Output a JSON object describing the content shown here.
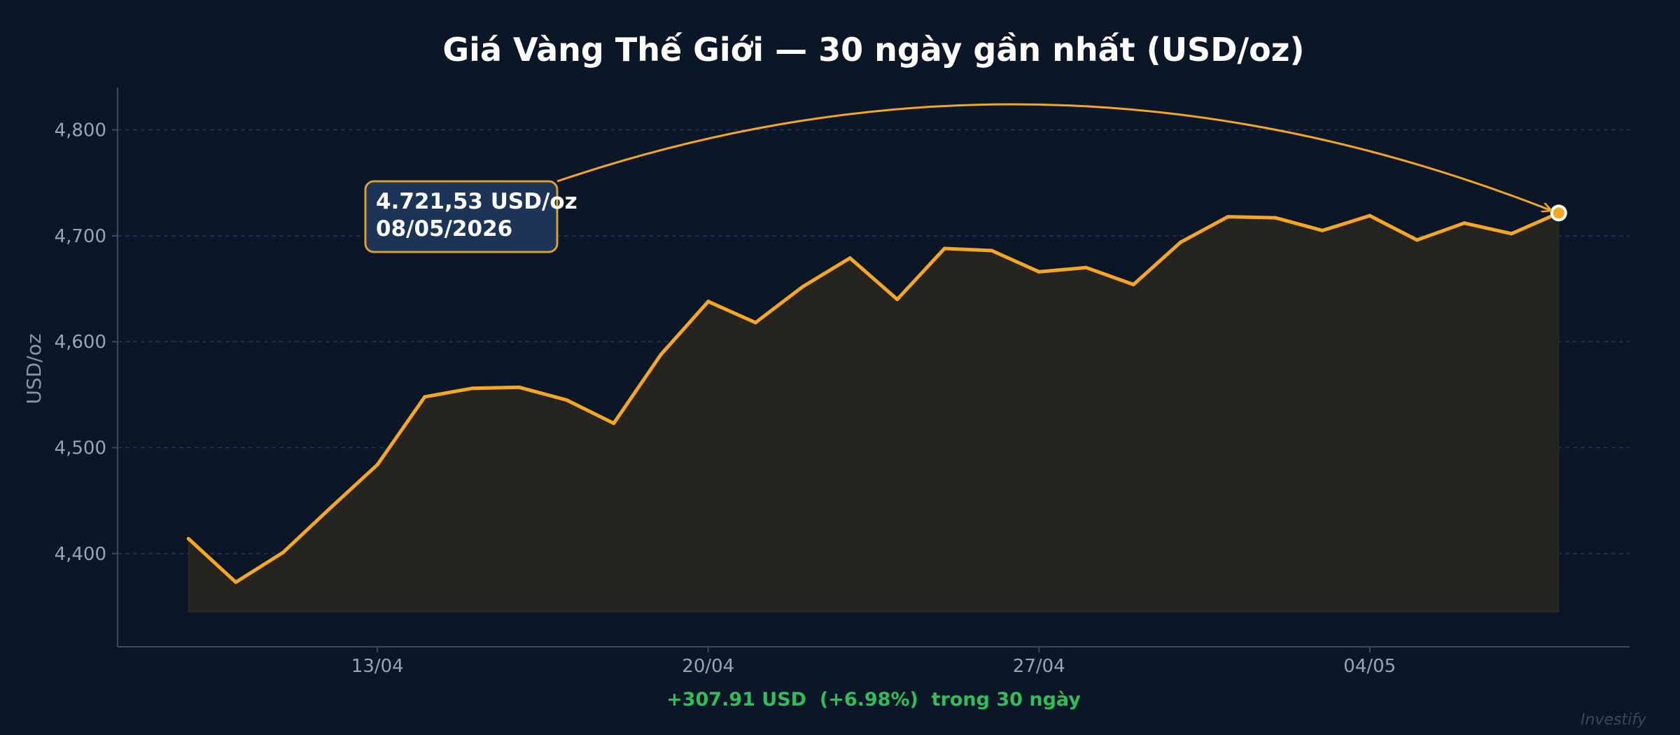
{
  "chart_data": {
    "type": "area",
    "title": "Giá Vàng Thế Giới — 30 ngày gần nhất (USD/oz)",
    "xlabel": "",
    "ylabel": "USD/oz",
    "ylim": [
      4312,
      4840
    ],
    "xlim": [
      "2026-04-07T12:00",
      "2026-05-09T12:00"
    ],
    "yticks": [
      4400,
      4500,
      4600,
      4700,
      4800
    ],
    "ytick_labels": [
      "4,400",
      "4,500",
      "4,600",
      "4,700",
      "4,800"
    ],
    "xticks": [
      "2026-04-13",
      "2026-04-20",
      "2026-04-27",
      "2026-05-04"
    ],
    "xtick_labels": [
      "13/04",
      "20/04",
      "27/04",
      "04/05"
    ],
    "grid": true,
    "x": [
      "2026-04-09",
      "2026-04-10",
      "2026-04-11",
      "2026-04-12",
      "2026-04-13",
      "2026-04-14",
      "2026-04-15",
      "2026-04-16",
      "2026-04-17",
      "2026-04-18",
      "2026-04-19",
      "2026-04-20",
      "2026-04-21",
      "2026-04-22",
      "2026-04-23",
      "2026-04-24",
      "2026-04-25",
      "2026-04-26",
      "2026-04-27",
      "2026-04-28",
      "2026-04-29",
      "2026-04-30",
      "2026-05-01",
      "2026-05-02",
      "2026-05-03",
      "2026-05-04",
      "2026-05-05",
      "2026-05-06",
      "2026-05-07",
      "2026-05-08"
    ],
    "series": [
      {
        "values": [
          4414,
          4373,
          4401,
          4443,
          4484,
          4548,
          4556,
          4557,
          4545,
          4523,
          4588,
          4638,
          4618,
          4652,
          4679,
          4640,
          4688,
          4686,
          4666,
          4670,
          4654,
          4694,
          4718,
          4717,
          4705,
          4719,
          4696,
          4712,
          4702,
          4721.53
        ],
        "color": "#f5a623"
      }
    ],
    "annotation": {
      "line1": "4.721,53 USD/oz",
      "line2": "08/05/2026",
      "x": "2026-05-08",
      "y": 4721.53
    },
    "change_summary": "+307.91 USD  (+6.98%)  trong 30 ngày",
    "change_color": "#2fbf5a",
    "watermark": "Investify"
  },
  "colors": {
    "background": "#0b1626",
    "line": "#f5a623",
    "grid": "#22375a",
    "axis": "#3a4a60",
    "area_fill": "#26241f",
    "callout_bg": "#1c3557"
  }
}
